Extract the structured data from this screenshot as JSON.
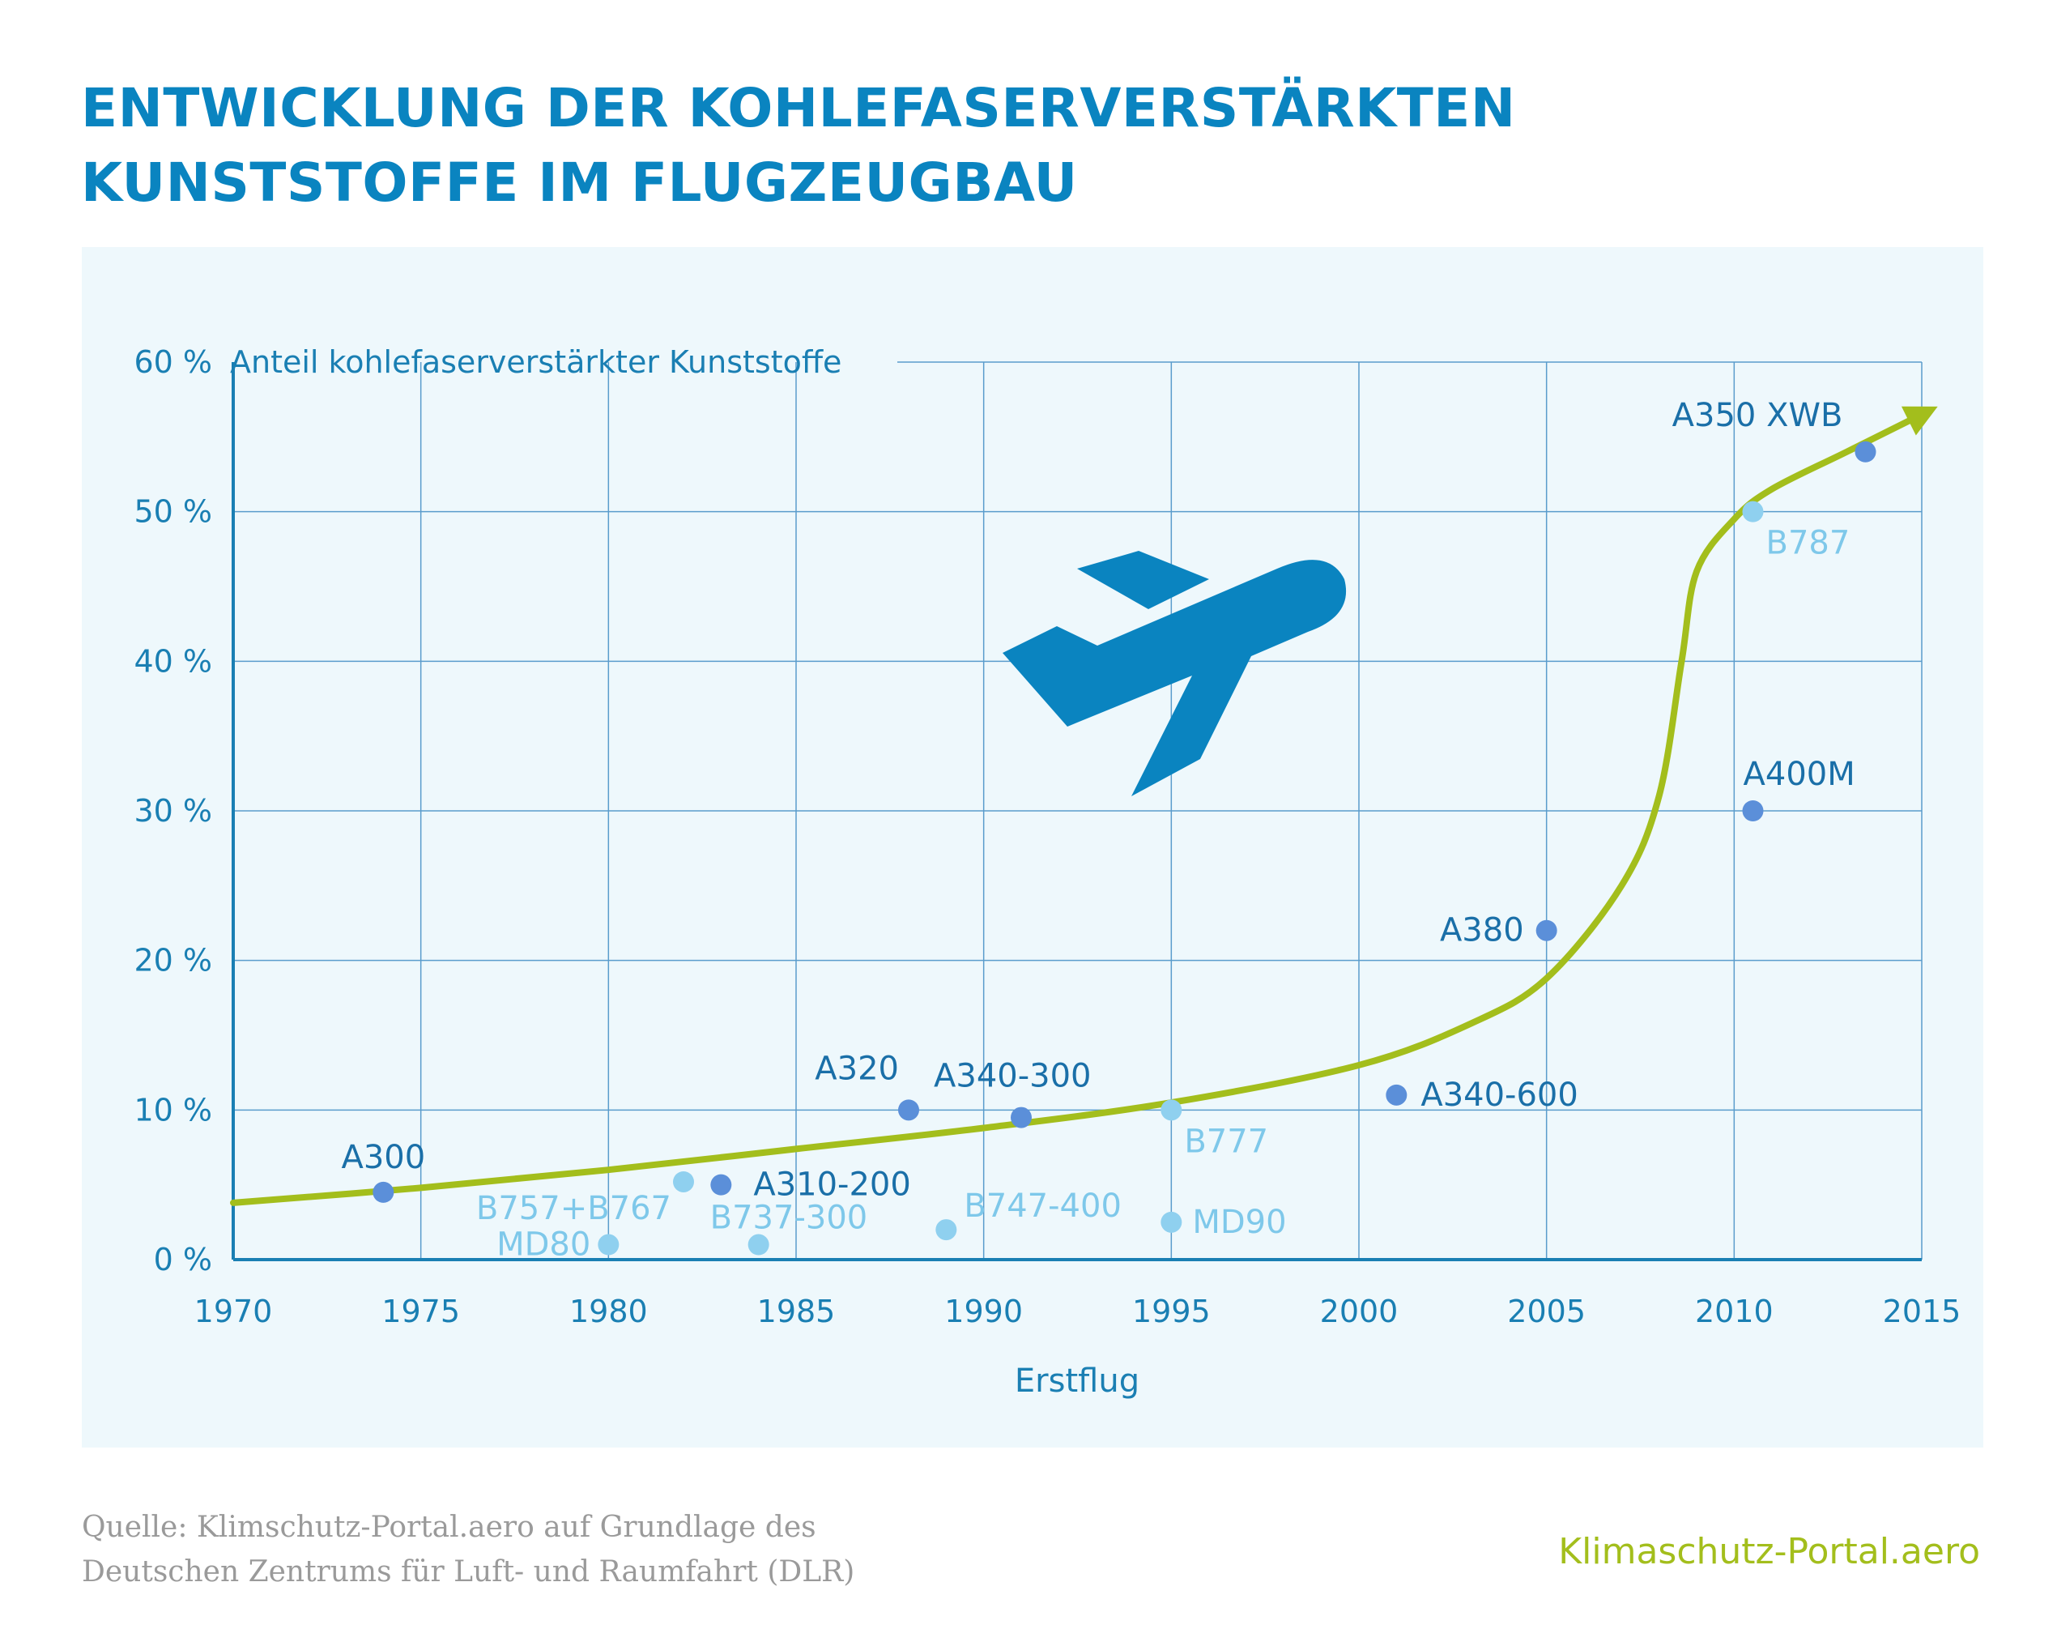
{
  "title": {
    "line1": "ENTWICKLUNG DER KOHLEFASERVERSTÄRKTEN",
    "line2": "KUNSTSTOFFE IM FLUGZEUGBAU"
  },
  "source": {
    "line1": "Quelle: Klimschutz-Portal.aero auf Grundlage des",
    "line2": "Deutschen Zentrums für Luft- und Raumfahrt (DLR)"
  },
  "brand": "Klimaschutz-Portal.aero",
  "colors": {
    "title": "#0a84c0",
    "axis": "#1a7fb3",
    "grid": "#5a9ccc",
    "panel": "#eef8fc",
    "airbus_point": "#5b8fd9",
    "boeing_point": "#8fd0ef",
    "airbus_label": "#1a6fa8",
    "boeing_label": "#7ec8ea",
    "trend": "#a3be1c",
    "plane": "#0a84c0"
  },
  "icons": [
    "airplane-icon"
  ],
  "chart_data": {
    "type": "scatter",
    "title": "",
    "xlabel": "Erstflug",
    "ylabel": "Anteil kohlefaserverstärkter Kunststoffe",
    "xlim": [
      1970,
      2015
    ],
    "ylim": [
      0,
      60
    ],
    "x_ticks": [
      "1970",
      "1975",
      "1980",
      "1985",
      "1990",
      "1995",
      "2000",
      "2005",
      "2010",
      "2015"
    ],
    "y_ticks": [
      "0 %",
      "10 %",
      "20 %",
      "30 %",
      "40 %",
      "50 %",
      "60 %"
    ],
    "grid": true,
    "series": [
      {
        "group": "dark",
        "points": [
          {
            "label": "A300",
            "x": 1974,
            "y": 4.5
          },
          {
            "label": "A310-200",
            "x": 1983,
            "y": 5
          },
          {
            "label": "A320",
            "x": 1988,
            "y": 10
          },
          {
            "label": "A340-300",
            "x": 1991,
            "y": 9.5
          },
          {
            "label": "A340-600",
            "x": 2001,
            "y": 11
          },
          {
            "label": "A380",
            "x": 2005,
            "y": 22
          },
          {
            "label": "A400M",
            "x": 2010.5,
            "y": 30
          },
          {
            "label": "A350 XWB",
            "x": 2013.5,
            "y": 54
          }
        ]
      },
      {
        "group": "light",
        "points": [
          {
            "label": "MD80",
            "x": 1980,
            "y": 1
          },
          {
            "label": "B757+B767",
            "x": 1982,
            "y": 5.2
          },
          {
            "label": "B737-300",
            "x": 1984,
            "y": 1
          },
          {
            "label": "B747-400",
            "x": 1989,
            "y": 2
          },
          {
            "label": "B777",
            "x": 1995,
            "y": 10
          },
          {
            "label": "MD90",
            "x": 1995,
            "y": 2.5
          },
          {
            "label": "B787",
            "x": 2010.5,
            "y": 50
          }
        ]
      }
    ],
    "trend_line": [
      [
        1970,
        3.8
      ],
      [
        1975,
        4.8
      ],
      [
        1980,
        6
      ],
      [
        1985,
        7.4
      ],
      [
        1990,
        8.8
      ],
      [
        1995,
        10.5
      ],
      [
        2000,
        13
      ],
      [
        2003,
        15.8
      ],
      [
        2005,
        18.8
      ],
      [
        2007,
        25
      ],
      [
        2008,
        31
      ],
      [
        2008.6,
        40
      ],
      [
        2009,
        46
      ],
      [
        2010,
        49.5
      ],
      [
        2011,
        51.5
      ],
      [
        2013,
        54
      ],
      [
        2015,
        56.5
      ]
    ]
  }
}
